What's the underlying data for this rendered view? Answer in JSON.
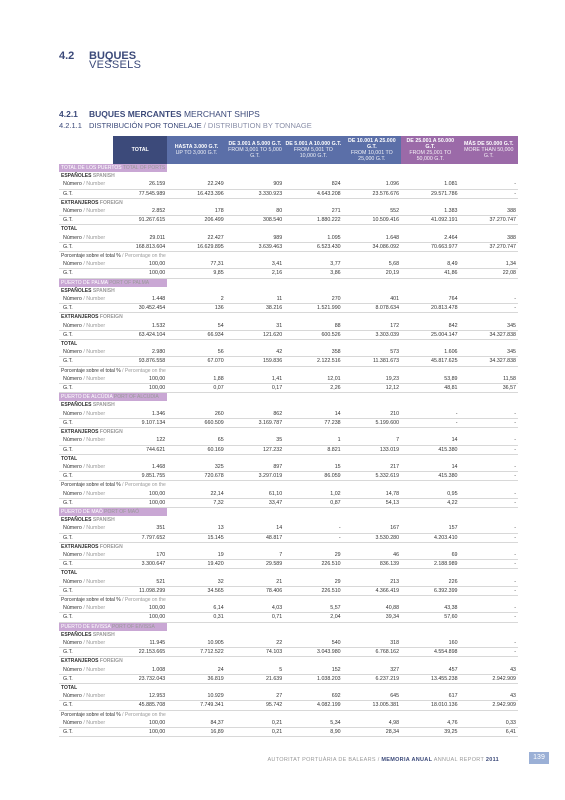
{
  "section": {
    "number": "4.2",
    "title": "BUQUES",
    "subtitle": "VESSELS"
  },
  "subsection": {
    "number": "4.2.1",
    "title_bold": "BUQUES MERCANTES",
    "title_rest": "MERCHANT SHIPS"
  },
  "subsubsection": {
    "number": "4.2.1.1",
    "title": "DISTRIBUCIÓN POR TONELAJE",
    "title_en": "/ DISTRIBUTION BY TONNAGE"
  },
  "columns": [
    {
      "es": "TOTAL",
      "en": ""
    },
    {
      "es": "HASTA 3.000 G.T.",
      "en": "UP TO 3,000 G.T."
    },
    {
      "es": "DE 3.001 A 5.000 G.T.",
      "en": "FROM 3,001 TO 5,000 G.T."
    },
    {
      "es": "DE 5.001 A 10.000 G.T.",
      "en": "FROM 5,001 TO 10,000 G.T."
    },
    {
      "es": "DE 10.001 A 25.000 G.T.",
      "en": "FROM 10,001 TO 25,000 G.T."
    },
    {
      "es": "DE 25.001 A 50.000 G.T.",
      "en": "FROM 25,001 TO 50,000 G.T."
    },
    {
      "es": "MÁS DE 50.000 G.T.",
      "en": "MORE THAN 50,000 G.T."
    }
  ],
  "rows": [
    {
      "type": "band",
      "es": "TOTAL DE LOS PUERTOS",
      "en": "TOTAL OF PORTS"
    },
    {
      "type": "grp",
      "es": "ESPAÑOLES",
      "en": "SPANISH"
    },
    {
      "type": "dat",
      "es": "Número",
      "en": "/ Number",
      "v": [
        "26.159",
        "22.249",
        "909",
        "824",
        "1.096",
        "1.081",
        "-"
      ]
    },
    {
      "type": "dat",
      "es": "G.T.",
      "en": "",
      "v": [
        "77.545.989",
        "16.423.396",
        "3.330.923",
        "4.643.208",
        "23.576.676",
        "29.571.786",
        "-"
      ]
    },
    {
      "type": "grp",
      "es": "EXTRANJEROS",
      "en": "FOREIGN"
    },
    {
      "type": "dat",
      "es": "Número",
      "en": "/ Number",
      "v": [
        "2.852",
        "178",
        "80",
        "271",
        "552",
        "1.383",
        "388"
      ]
    },
    {
      "type": "dat",
      "es": "G.T.",
      "en": "",
      "v": [
        "91.267.615",
        "206.499",
        "308.540",
        "1.880.222",
        "10.509.416",
        "41.092.191",
        "37.270.747"
      ]
    },
    {
      "type": "grp",
      "es": "TOTAL",
      "en": ""
    },
    {
      "type": "dat",
      "es": "Número",
      "en": "/ Number",
      "v": [
        "29.011",
        "22.427",
        "989",
        "1.095",
        "1.648",
        "2.464",
        "388"
      ]
    },
    {
      "type": "dat",
      "es": "G.T.",
      "en": "",
      "v": [
        "168.813.604",
        "16.629.895",
        "3.639.463",
        "6.523.430",
        "34.086.092",
        "70.663.977",
        "37.270.747"
      ]
    },
    {
      "type": "pct",
      "es": "Porcentaje sobre el total %",
      "en": "/ Percentage on the total %"
    },
    {
      "type": "dat",
      "es": "Número",
      "en": "/ Number",
      "v": [
        "100,00",
        "77,31",
        "3,41",
        "3,77",
        "5,68",
        "8,49",
        "1,34"
      ]
    },
    {
      "type": "dat",
      "es": "G.T.",
      "en": "",
      "v": [
        "100,00",
        "9,85",
        "2,16",
        "3,86",
        "20,19",
        "41,86",
        "22,08"
      ]
    },
    {
      "type": "band",
      "es": "PUERTO DE PALMA",
      "en": "PORT OF PALMA"
    },
    {
      "type": "grp",
      "es": "ESPAÑOLES",
      "en": "SPANISH"
    },
    {
      "type": "dat",
      "es": "Número",
      "en": "/ Number",
      "v": [
        "1.448",
        "2",
        "11",
        "270",
        "401",
        "764",
        "-"
      ]
    },
    {
      "type": "dat",
      "es": "G.T.",
      "en": "",
      "v": [
        "30.452.454",
        "136",
        "38.216",
        "1.521.990",
        "8.078.634",
        "20.813.478",
        "-"
      ]
    },
    {
      "type": "grp",
      "es": "EXTRANJEROS",
      "en": "FOREIGN"
    },
    {
      "type": "dat",
      "es": "Número",
      "en": "/ Number",
      "v": [
        "1.532",
        "54",
        "31",
        "88",
        "172",
        "842",
        "345"
      ]
    },
    {
      "type": "dat",
      "es": "G.T.",
      "en": "",
      "v": [
        "63.424.104",
        "66.934",
        "121.620",
        "600.526",
        "3.303.039",
        "25.004.147",
        "34.327.838"
      ]
    },
    {
      "type": "grp",
      "es": "TOTAL",
      "en": ""
    },
    {
      "type": "dat",
      "es": "Número",
      "en": "/ Number",
      "v": [
        "2.980",
        "56",
        "42",
        "358",
        "573",
        "1.606",
        "345"
      ]
    },
    {
      "type": "dat",
      "es": "G.T.",
      "en": "",
      "v": [
        "93.876.558",
        "67.070",
        "159.836",
        "2.122.516",
        "11.381.673",
        "45.817.625",
        "34.327.838"
      ]
    },
    {
      "type": "pct",
      "es": "Porcentaje sobre el total %",
      "en": "/ Percentage on the total %"
    },
    {
      "type": "dat",
      "es": "Número",
      "en": "/ Number",
      "v": [
        "100,00",
        "1,88",
        "1,41",
        "12,01",
        "19,23",
        "53,89",
        "11,58"
      ]
    },
    {
      "type": "dat",
      "es": "G.T.",
      "en": "",
      "v": [
        "100,00",
        "0,07",
        "0,17",
        "2,26",
        "12,12",
        "48,81",
        "36,57"
      ]
    },
    {
      "type": "band",
      "es": "PUERTO DE ALCÚDIA",
      "en": "PORT OF ALCUDIA"
    },
    {
      "type": "grp",
      "es": "ESPAÑOLES",
      "en": "SPANISH"
    },
    {
      "type": "dat",
      "es": "Número",
      "en": "/ Number",
      "v": [
        "1.346",
        "260",
        "862",
        "14",
        "210",
        "-",
        "-"
      ]
    },
    {
      "type": "dat",
      "es": "G.T.",
      "en": "",
      "v": [
        "9.107.134",
        "660.509",
        "3.169.787",
        "77.238",
        "5.199.600",
        "-",
        "-"
      ]
    },
    {
      "type": "grp",
      "es": "EXTRANJEROS",
      "en": "FOREIGN"
    },
    {
      "type": "dat",
      "es": "Número",
      "en": "/ Number",
      "v": [
        "122",
        "65",
        "35",
        "1",
        "7",
        "14",
        "-"
      ]
    },
    {
      "type": "dat",
      "es": "G.T.",
      "en": "",
      "v": [
        "744.621",
        "60.169",
        "127.232",
        "8.821",
        "133.019",
        "415.380",
        "-"
      ]
    },
    {
      "type": "grp",
      "es": "TOTAL",
      "en": ""
    },
    {
      "type": "dat",
      "es": "Número",
      "en": "/ Number",
      "v": [
        "1.468",
        "325",
        "897",
        "15",
        "217",
        "14",
        "-"
      ]
    },
    {
      "type": "dat",
      "es": "G.T.",
      "en": "",
      "v": [
        "9.851.755",
        "720.678",
        "3.297.019",
        "86.059",
        "5.332.619",
        "415.380",
        "-"
      ]
    },
    {
      "type": "pct",
      "es": "Porcentaje sobre el total %",
      "en": "/ Percentage on the total %"
    },
    {
      "type": "dat",
      "es": "Número",
      "en": "/ Number",
      "v": [
        "100,00",
        "22,14",
        "61,10",
        "1,02",
        "14,78",
        "0,95",
        "-"
      ]
    },
    {
      "type": "dat",
      "es": "G.T.",
      "en": "",
      "v": [
        "100,00",
        "7,32",
        "33,47",
        "0,87",
        "54,13",
        "4,22",
        "-"
      ]
    },
    {
      "type": "band",
      "es": "PUERTO DE MAÓ",
      "en": "PORT OF MAÓ"
    },
    {
      "type": "grp",
      "es": "ESPAÑOLES",
      "en": "SPANISH"
    },
    {
      "type": "dat",
      "es": "Número",
      "en": "/ Number",
      "v": [
        "351",
        "13",
        "14",
        "-",
        "167",
        "157",
        "-"
      ]
    },
    {
      "type": "dat",
      "es": "G.T.",
      "en": "",
      "v": [
        "7.797.652",
        "15.145",
        "48.817",
        "-",
        "3.530.280",
        "4.203.410",
        "-"
      ]
    },
    {
      "type": "grp",
      "es": "EXTRANJEROS",
      "en": "FOREIGN"
    },
    {
      "type": "dat",
      "es": "Número",
      "en": "/ Number",
      "v": [
        "170",
        "19",
        "7",
        "29",
        "46",
        "69",
        "-"
      ]
    },
    {
      "type": "dat",
      "es": "G.T.",
      "en": "",
      "v": [
        "3.300.647",
        "19.420",
        "29.589",
        "226.510",
        "836.139",
        "2.188.989",
        "-"
      ]
    },
    {
      "type": "grp",
      "es": "TOTAL",
      "en": ""
    },
    {
      "type": "dat",
      "es": "Número",
      "en": "/ Number",
      "v": [
        "521",
        "32",
        "21",
        "29",
        "213",
        "226",
        "-"
      ]
    },
    {
      "type": "dat",
      "es": "G.T.",
      "en": "",
      "v": [
        "11.098.299",
        "34.565",
        "78.406",
        "226.510",
        "4.366.419",
        "6.392.399",
        "-"
      ]
    },
    {
      "type": "pct",
      "es": "Porcentaje sobre el total %",
      "en": "/ Percentage on the total %"
    },
    {
      "type": "dat",
      "es": "Número",
      "en": "/ Number",
      "v": [
        "100,00",
        "6,14",
        "4,03",
        "5,57",
        "40,88",
        "43,38",
        "-"
      ]
    },
    {
      "type": "dat",
      "es": "G.T.",
      "en": "",
      "v": [
        "100,00",
        "0,31",
        "0,71",
        "2,04",
        "39,34",
        "57,60",
        "-"
      ]
    },
    {
      "type": "band",
      "es": "PUERTO DE EIVISSA",
      "en": "PORT OF EIVISSA"
    },
    {
      "type": "grp",
      "es": "ESPAÑOLES",
      "en": "SPANISH"
    },
    {
      "type": "dat",
      "es": "Número",
      "en": "/ Number",
      "v": [
        "11.945",
        "10.905",
        "22",
        "540",
        "318",
        "160",
        "-"
      ]
    },
    {
      "type": "dat",
      "es": "G.T.",
      "en": "",
      "v": [
        "22.153.665",
        "7.712.522",
        "74.103",
        "3.043.980",
        "6.768.162",
        "4.554.898",
        "-"
      ]
    },
    {
      "type": "grp",
      "es": "EXTRANJEROS",
      "en": "FOREIGN"
    },
    {
      "type": "dat",
      "es": "Número",
      "en": "/ Number",
      "v": [
        "1.008",
        "24",
        "5",
        "152",
        "327",
        "457",
        "43"
      ]
    },
    {
      "type": "dat",
      "es": "G.T.",
      "en": "",
      "v": [
        "23.732.043",
        "36.819",
        "21.639",
        "1.038.203",
        "6.237.219",
        "13.455.238",
        "2.942.909"
      ]
    },
    {
      "type": "grp",
      "es": "TOTAL",
      "en": ""
    },
    {
      "type": "dat",
      "es": "Número",
      "en": "/ Number",
      "v": [
        "12.953",
        "10.929",
        "27",
        "692",
        "645",
        "617",
        "43"
      ]
    },
    {
      "type": "dat",
      "es": "G.T.",
      "en": "",
      "v": [
        "45.885.708",
        "7.749.341",
        "95.742",
        "4.082.199",
        "13.005.381",
        "18.010.136",
        "2.942.909"
      ]
    },
    {
      "type": "pct",
      "es": "Porcentaje sobre el total %",
      "en": "/ Percentage on the total %"
    },
    {
      "type": "dat",
      "es": "Número",
      "en": "/ Number",
      "v": [
        "100,00",
        "84,37",
        "0,21",
        "5,34",
        "4,98",
        "4,76",
        "0,33"
      ]
    },
    {
      "type": "dat",
      "es": "G.T.",
      "en": "",
      "v": [
        "100,00",
        "16,89",
        "0,21",
        "8,90",
        "28,34",
        "39,25",
        "6,41"
      ]
    }
  ],
  "footer": {
    "org": "AUTORITAT PORTUÀRIA DE BALEARS",
    "sep": "/",
    "title": "MEMORIA ANUAL",
    "title_en": "ANNUAL REPORT",
    "year": "2011"
  },
  "page_number": "139"
}
